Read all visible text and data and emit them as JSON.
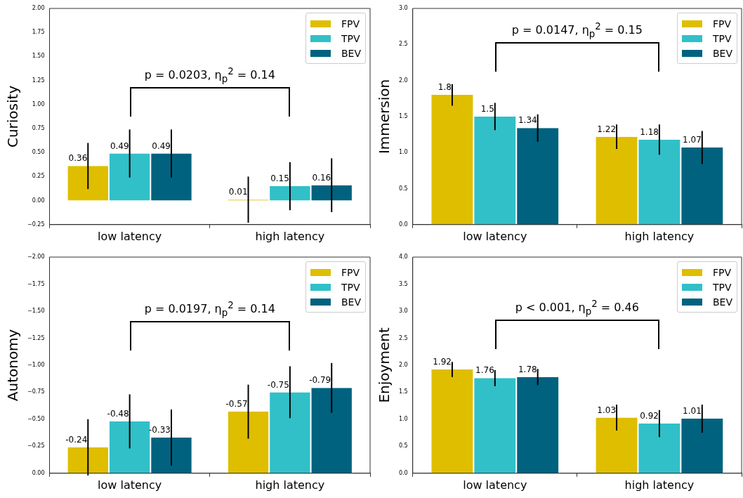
{
  "chart_data": [
    {
      "type": "bar",
      "ylabel": "Curiosity",
      "categories": [
        "low latency",
        "high latency"
      ],
      "ylim": [
        -0.25,
        2
      ],
      "yticks": [
        {
          "value": -0.25,
          "label": "−0.25"
        },
        {
          "value": 0,
          "label": "0.00"
        },
        {
          "value": 0.25,
          "label": "0.25"
        },
        {
          "value": 0.5,
          "label": "0.50"
        },
        {
          "value": 0.75,
          "label": "0.75"
        },
        {
          "value": 1,
          "label": "1.00"
        },
        {
          "value": 1.25,
          "label": "1.25"
        },
        {
          "value": 1.5,
          "label": "1.50"
        },
        {
          "value": 1.75,
          "label": "1.75"
        },
        {
          "value": 2,
          "label": "2.00"
        }
      ],
      "legend": "top right",
      "data_labels": true,
      "annotations": [
        "p = 0.0203, η$_{p}$$^{2}$ = 0.14"
      ],
      "series": [
        {
          "name": "FPV",
          "color": "#dfbe00",
          "values": [
            0.36,
            0.01
          ],
          "errors": [
            0.24,
            0.24
          ]
        },
        {
          "name": "TPV",
          "color": "#31c0c8",
          "values": [
            0.49,
            0.15
          ],
          "errors": [
            0.25,
            0.25
          ]
        },
        {
          "name": "BEV",
          "color": "#00627f",
          "values": [
            0.49,
            0.16
          ],
          "errors": [
            0.25,
            0.28
          ]
        }
      ]
    },
    {
      "type": "bar",
      "ylabel": "Immersion",
      "categories": [
        "low latency",
        "high latency"
      ],
      "ylim": [
        0,
        3
      ],
      "yticks": [
        {
          "value": 0,
          "label": "0.0"
        },
        {
          "value": 0.5,
          "label": "0.5"
        },
        {
          "value": 1,
          "label": "1.0"
        },
        {
          "value": 1.5,
          "label": "1.5"
        },
        {
          "value": 2,
          "label": "2.0"
        },
        {
          "value": 2.5,
          "label": "2.5"
        },
        {
          "value": 3,
          "label": "3.0"
        }
      ],
      "legend": "top right",
      "data_labels": true,
      "annotations": [
        "p = 0.0147, η$_{p}$$^{2}$ = 0.15"
      ],
      "series": [
        {
          "name": "FPV",
          "color": "#dfbe00",
          "values": [
            1.8,
            1.22
          ],
          "errors": [
            0.15,
            0.17
          ]
        },
        {
          "name": "TPV",
          "color": "#31c0c8",
          "values": [
            1.5,
            1.18
          ],
          "errors": [
            0.19,
            0.21
          ]
        },
        {
          "name": "BEV",
          "color": "#00627f",
          "values": [
            1.34,
            1.07
          ],
          "errors": [
            0.19,
            0.23
          ]
        }
      ]
    },
    {
      "type": "bar",
      "ylabel": "Autonomy",
      "categories": [
        "low latency",
        "high latency"
      ],
      "ylim": [
        0,
        -2
      ],
      "yticks": [
        {
          "value": 0,
          "label": "0.00"
        },
        {
          "value": -0.25,
          "label": "−0.25"
        },
        {
          "value": -0.5,
          "label": "−0.50"
        },
        {
          "value": -0.75,
          "label": "−0.75"
        },
        {
          "value": -1,
          "label": "−1.00"
        },
        {
          "value": -1.25,
          "label": "−1.25"
        },
        {
          "value": -1.5,
          "label": "−1.50"
        },
        {
          "value": -1.75,
          "label": "−1.75"
        },
        {
          "value": -2,
          "label": "−2.00"
        }
      ],
      "legend": "top right",
      "data_labels": true,
      "annotations": [
        "p = 0.0197, η$_{p}$$^{2}$ = 0.14"
      ],
      "series": [
        {
          "name": "FPV",
          "color": "#dfbe00",
          "values": [
            -0.24,
            -0.57
          ],
          "errors": [
            0.26,
            0.25
          ]
        },
        {
          "name": "TPV",
          "color": "#31c0c8",
          "values": [
            -0.48,
            -0.75
          ],
          "errors": [
            0.25,
            0.24
          ]
        },
        {
          "name": "BEV",
          "color": "#00627f",
          "values": [
            -0.33,
            -0.79
          ],
          "errors": [
            0.26,
            0.23
          ]
        }
      ]
    },
    {
      "type": "bar",
      "ylabel": "Enjoyment",
      "categories": [
        "low latency",
        "high latency"
      ],
      "ylim": [
        0,
        4
      ],
      "yticks": [
        {
          "value": 0,
          "label": "0.0"
        },
        {
          "value": 0.5,
          "label": "0.5"
        },
        {
          "value": 1,
          "label": "1.0"
        },
        {
          "value": 1.5,
          "label": "1.5"
        },
        {
          "value": 2,
          "label": "2.0"
        },
        {
          "value": 2.5,
          "label": "2.5"
        },
        {
          "value": 3,
          "label": "3.0"
        },
        {
          "value": 3.5,
          "label": "3.5"
        },
        {
          "value": 4,
          "label": "4.0"
        }
      ],
      "legend": "top right",
      "data_labels": true,
      "annotations": [
        "p < 0.001, η$_{p}$$^{2}$ = 0.46"
      ],
      "series": [
        {
          "name": "FPV",
          "color": "#dfbe00",
          "values": [
            1.92,
            1.03
          ],
          "errors": [
            0.14,
            0.24
          ]
        },
        {
          "name": "TPV",
          "color": "#31c0c8",
          "values": [
            1.76,
            0.92
          ],
          "errors": [
            0.15,
            0.25
          ]
        },
        {
          "name": "BEV",
          "color": "#00627f",
          "values": [
            1.78,
            1.01
          ],
          "errors": [
            0.15,
            0.26
          ]
        }
      ]
    }
  ]
}
